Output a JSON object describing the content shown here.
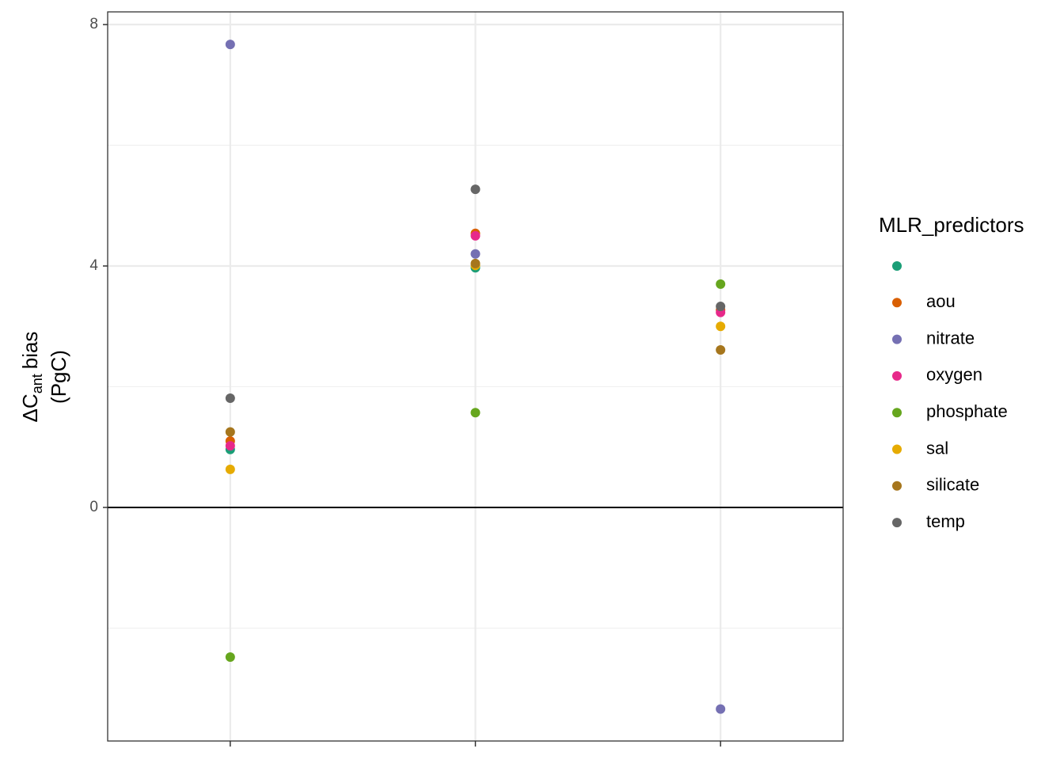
{
  "chart_data": {
    "type": "scatter",
    "categories": [
      null,
      null,
      null
    ],
    "series": [
      {
        "name": null,
        "color": "#1b9e77",
        "values": [
          0.96,
          3.97,
          null
        ]
      },
      {
        "name": "aou",
        "color": "#d95f02",
        "values": [
          1.1,
          4.54,
          3.27
        ]
      },
      {
        "name": "nitrate",
        "color": "#7570b3",
        "values": [
          7.67,
          4.2,
          -3.34
        ]
      },
      {
        "name": "oxygen",
        "color": "#e7298a",
        "values": [
          1.02,
          4.5,
          3.23
        ]
      },
      {
        "name": "phosphate",
        "color": "#66a61e",
        "values": [
          -2.48,
          1.57,
          3.7
        ]
      },
      {
        "name": "sal",
        "color": "#e6ab02",
        "values": [
          0.63,
          4.01,
          3.0
        ]
      },
      {
        "name": "silicate",
        "color": "#a6761d",
        "values": [
          1.25,
          4.04,
          2.61
        ]
      },
      {
        "name": "temp",
        "color": "#666666",
        "values": [
          1.81,
          5.27,
          3.33
        ]
      }
    ],
    "ylim": [
      -3.87,
      8.21
    ],
    "yticks": [
      0,
      4,
      8
    ],
    "minor_yticks": [
      -2,
      2,
      6
    ],
    "hline": 0,
    "grid": true,
    "ylabel": {
      "base": "ΔC",
      "sub": "ant",
      "rest": "bias",
      "line2": "(PgC)"
    },
    "legend_title": "MLR_predictors",
    "legend_position": "right"
  }
}
